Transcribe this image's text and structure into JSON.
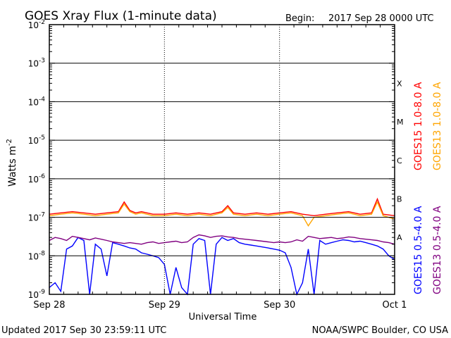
{
  "chart_data": {
    "type": "line",
    "title": "GOES Xray Flux (1-minute data)",
    "begin_label": "Begin:",
    "begin_value": "2017 Sep 28 0000 UTC",
    "ylabel": "Watts m",
    "ylabel_sup": "-2",
    "xlabel": "Universal Time",
    "y_scale": "log",
    "ylim": [
      1e-09,
      0.01
    ],
    "y_ticks": [
      {
        "base": "10",
        "exp": "-2",
        "value": 0.01
      },
      {
        "base": "10",
        "exp": "-3",
        "value": 0.001
      },
      {
        "base": "10",
        "exp": "-4",
        "value": 0.0001
      },
      {
        "base": "10",
        "exp": "-5",
        "value": 1e-05
      },
      {
        "base": "10",
        "exp": "-6",
        "value": 1e-06
      },
      {
        "base": "10",
        "exp": "-7",
        "value": 1e-07
      },
      {
        "base": "10",
        "exp": "-8",
        "value": 1e-08
      },
      {
        "base": "10",
        "exp": "-9",
        "value": 1e-09
      }
    ],
    "x_unit": "day",
    "xlim": [
      0,
      3
    ],
    "x_ticks": [
      {
        "label": "Sep 28",
        "value": 0
      },
      {
        "label": "Sep 29",
        "value": 1
      },
      {
        "label": "Sep 30",
        "value": 2
      },
      {
        "label": "Oct 1",
        "value": 3
      }
    ],
    "class_labels": [
      {
        "label": "X",
        "value": 0.0003
      },
      {
        "label": "M",
        "value": 3e-05
      },
      {
        "label": "C",
        "value": 3e-06
      },
      {
        "label": "B",
        "value": 3e-07
      },
      {
        "label": "A",
        "value": 3e-08
      }
    ],
    "series": [
      {
        "name": "GOES15 1.0-8.0 A",
        "color": "#ff0000",
        "x": [
          0,
          0.1,
          0.2,
          0.3,
          0.4,
          0.5,
          0.6,
          0.65,
          0.7,
          0.75,
          0.8,
          0.9,
          1.0,
          1.1,
          1.2,
          1.3,
          1.4,
          1.5,
          1.55,
          1.6,
          1.7,
          1.8,
          1.9,
          2.0,
          2.1,
          2.2,
          2.3,
          2.4,
          2.5,
          2.6,
          2.7,
          2.8,
          2.85,
          2.9,
          3.0
        ],
        "y": [
          1.2e-07,
          1.3e-07,
          1.4e-07,
          1.3e-07,
          1.2e-07,
          1.3e-07,
          1.4e-07,
          2.5e-07,
          1.5e-07,
          1.3e-07,
          1.4e-07,
          1.2e-07,
          1.2e-07,
          1.3e-07,
          1.2e-07,
          1.3e-07,
          1.2e-07,
          1.4e-07,
          2e-07,
          1.3e-07,
          1.2e-07,
          1.3e-07,
          1.2e-07,
          1.3e-07,
          1.4e-07,
          1.2e-07,
          1.1e-07,
          1.2e-07,
          1.3e-07,
          1.4e-07,
          1.2e-07,
          1.3e-07,
          3e-07,
          1.2e-07,
          1.1e-07
        ]
      },
      {
        "name": "GOES13 1.0-8.0 A",
        "color": "#ffa500",
        "x": [
          0,
          0.1,
          0.2,
          0.3,
          0.4,
          0.5,
          0.6,
          0.65,
          0.7,
          0.75,
          0.8,
          0.9,
          1.0,
          1.1,
          1.2,
          1.3,
          1.4,
          1.5,
          1.55,
          1.6,
          1.7,
          1.8,
          1.9,
          2.0,
          2.1,
          2.2,
          2.25,
          2.3,
          2.4,
          2.5,
          2.6,
          2.7,
          2.8,
          2.85,
          2.9,
          3.0
        ],
        "y": [
          1.1e-07,
          1.2e-07,
          1.3e-07,
          1.2e-07,
          1.1e-07,
          1.2e-07,
          1.3e-07,
          2.2e-07,
          1.4e-07,
          1.2e-07,
          1.3e-07,
          1.1e-07,
          1.1e-07,
          1.2e-07,
          1.1e-07,
          1.2e-07,
          1.1e-07,
          1.3e-07,
          1.8e-07,
          1.2e-07,
          1.1e-07,
          1.2e-07,
          1.1e-07,
          1.2e-07,
          1.3e-07,
          1.1e-07,
          6e-08,
          1e-07,
          1.1e-07,
          1.2e-07,
          1.3e-07,
          1.1e-07,
          1.2e-07,
          2.5e-07,
          1.1e-07,
          9e-08
        ]
      },
      {
        "name": "GOES15 0.5-4.0 A",
        "color": "#0000ff",
        "x": [
          0,
          0.05,
          0.1,
          0.15,
          0.2,
          0.25,
          0.3,
          0.35,
          0.4,
          0.45,
          0.5,
          0.55,
          0.6,
          0.65,
          0.7,
          0.75,
          0.8,
          0.85,
          0.9,
          0.95,
          1.0,
          1.05,
          1.1,
          1.15,
          1.2,
          1.25,
          1.3,
          1.35,
          1.4,
          1.45,
          1.5,
          1.55,
          1.6,
          1.65,
          1.7,
          1.75,
          1.8,
          1.85,
          1.9,
          1.95,
          2.0,
          2.05,
          2.1,
          2.15,
          2.2,
          2.25,
          2.3,
          2.35,
          2.4,
          2.45,
          2.5,
          2.55,
          2.6,
          2.65,
          2.7,
          2.75,
          2.8,
          2.85,
          2.9,
          2.95,
          3.0
        ],
        "y": [
          1.5e-09,
          2e-09,
          1.2e-09,
          1.5e-08,
          1.8e-08,
          3e-08,
          2.5e-08,
          1e-09,
          2e-08,
          1.5e-08,
          3e-09,
          2.2e-08,
          2e-08,
          1.8e-08,
          1.6e-08,
          1.5e-08,
          1.2e-08,
          1.1e-08,
          1e-08,
          9e-09,
          6e-09,
          1e-09,
          5e-09,
          1.5e-09,
          1e-09,
          2e-08,
          2.8e-08,
          2.5e-08,
          1e-09,
          2e-08,
          3e-08,
          2.5e-08,
          2.8e-08,
          2.2e-08,
          2e-08,
          1.9e-08,
          1.8e-08,
          1.7e-08,
          1.6e-08,
          1.5e-08,
          1.4e-08,
          1.2e-08,
          5e-09,
          1e-09,
          2e-09,
          1.5e-08,
          1e-09,
          2.5e-08,
          2e-08,
          2.2e-08,
          2.4e-08,
          2.6e-08,
          2.5e-08,
          2.3e-08,
          2.4e-08,
          2.2e-08,
          2e-08,
          1.8e-08,
          1.5e-08,
          1e-08,
          8e-09
        ]
      },
      {
        "name": "GOES13 0.5-4.0 A",
        "color": "#800080",
        "x": [
          0,
          0.05,
          0.1,
          0.15,
          0.2,
          0.25,
          0.3,
          0.35,
          0.4,
          0.45,
          0.5,
          0.55,
          0.6,
          0.65,
          0.7,
          0.75,
          0.8,
          0.85,
          0.9,
          0.95,
          1.0,
          1.05,
          1.1,
          1.15,
          1.2,
          1.25,
          1.3,
          1.35,
          1.4,
          1.45,
          1.5,
          1.55,
          1.6,
          1.65,
          1.7,
          1.75,
          1.8,
          1.85,
          1.9,
          1.95,
          2.0,
          2.05,
          2.1,
          2.15,
          2.2,
          2.25,
          2.3,
          2.35,
          2.4,
          2.45,
          2.5,
          2.55,
          2.6,
          2.65,
          2.7,
          2.75,
          2.8,
          2.85,
          2.9,
          2.95,
          3.0
        ],
        "y": [
          2.5e-08,
          3e-08,
          2.8e-08,
          2.5e-08,
          3.2e-08,
          3e-08,
          2.8e-08,
          2.6e-08,
          2.9e-08,
          2.7e-08,
          2.5e-08,
          2.3e-08,
          2.2e-08,
          2.1e-08,
          2.2e-08,
          2.1e-08,
          2e-08,
          2.2e-08,
          2.3e-08,
          2.1e-08,
          2.2e-08,
          2.3e-08,
          2.4e-08,
          2.2e-08,
          2.3e-08,
          3e-08,
          3.5e-08,
          3.3e-08,
          3e-08,
          3.2e-08,
          3.3e-08,
          3.1e-08,
          3e-08,
          2.8e-08,
          2.7e-08,
          2.6e-08,
          2.5e-08,
          2.4e-08,
          2.3e-08,
          2.2e-08,
          2.3e-08,
          2.2e-08,
          2.3e-08,
          2.6e-08,
          2.4e-08,
          3.2e-08,
          3e-08,
          2.8e-08,
          2.9e-08,
          3e-08,
          2.8e-08,
          2.9e-08,
          3.1e-08,
          3e-08,
          2.8e-08,
          2.7e-08,
          2.6e-08,
          2.5e-08,
          2.3e-08,
          2.2e-08,
          2e-08
        ]
      }
    ]
  },
  "footer": {
    "updated": "Updated 2017 Sep 30 23:59:11 UTC",
    "credit": "NOAA/SWPC Boulder, CO USA"
  }
}
